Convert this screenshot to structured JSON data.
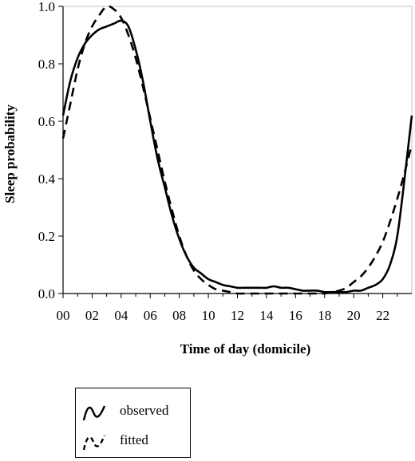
{
  "chart_data": {
    "type": "line",
    "title": "",
    "xlabel": "Time of day (domicile)",
    "ylabel": "Sleep probability",
    "xlim": [
      0,
      24
    ],
    "ylim": [
      0,
      1.0
    ],
    "x_ticks": [
      "00",
      "02",
      "04",
      "06",
      "08",
      "10",
      "12",
      "14",
      "16",
      "18",
      "20",
      "22"
    ],
    "y_ticks": [
      "0.0",
      "0.2",
      "0.4",
      "0.6",
      "0.8",
      "1.0"
    ],
    "grid": false,
    "legend_position": "bottom-left, below plot",
    "series": [
      {
        "name": "observed",
        "style": "solid",
        "x": [
          0,
          0.5,
          1,
          1.5,
          2,
          2.5,
          3,
          3.5,
          4,
          4.5,
          5,
          5.5,
          6,
          6.5,
          7,
          7.5,
          8,
          8.5,
          9,
          9.5,
          10,
          10.5,
          11,
          11.5,
          12,
          12.5,
          13,
          13.5,
          14,
          14.5,
          15,
          15.5,
          16,
          16.5,
          17,
          17.5,
          18,
          18.5,
          19,
          19.5,
          20,
          20.5,
          21,
          21.5,
          22,
          22.5,
          23,
          23.5,
          24
        ],
        "y": [
          0.62,
          0.74,
          0.82,
          0.87,
          0.9,
          0.92,
          0.93,
          0.94,
          0.95,
          0.93,
          0.85,
          0.74,
          0.6,
          0.47,
          0.37,
          0.27,
          0.19,
          0.13,
          0.09,
          0.07,
          0.05,
          0.04,
          0.03,
          0.025,
          0.02,
          0.02,
          0.02,
          0.02,
          0.02,
          0.025,
          0.02,
          0.02,
          0.015,
          0.01,
          0.01,
          0.01,
          0.005,
          0.005,
          0.005,
          0.005,
          0.01,
          0.01,
          0.02,
          0.03,
          0.05,
          0.1,
          0.2,
          0.4,
          0.62
        ]
      },
      {
        "name": "fitted",
        "style": "dashed",
        "x": [
          0,
          0.5,
          1,
          1.5,
          2,
          2.5,
          3,
          3.5,
          4,
          4.5,
          5,
          5.5,
          6,
          6.5,
          7,
          7.5,
          8,
          8.5,
          9,
          9.5,
          10,
          10.5,
          11,
          11.5,
          12,
          12.5,
          13,
          13.5,
          14,
          14.5,
          15,
          15.5,
          16,
          16.5,
          17,
          17.5,
          18,
          18.5,
          19,
          19.5,
          20,
          20.5,
          21,
          21.5,
          22,
          22.5,
          23,
          23.5,
          24
        ],
        "y": [
          0.54,
          0.66,
          0.78,
          0.87,
          0.93,
          0.97,
          1.0,
          0.99,
          0.96,
          0.9,
          0.82,
          0.72,
          0.61,
          0.5,
          0.39,
          0.29,
          0.2,
          0.13,
          0.08,
          0.05,
          0.03,
          0.015,
          0.01,
          0.005,
          0.0,
          0.0,
          0.0,
          0.0,
          0.0,
          0.0,
          0.0,
          0.0,
          0.0,
          0.0,
          0.0,
          0.0,
          0.0,
          0.005,
          0.01,
          0.02,
          0.04,
          0.06,
          0.09,
          0.13,
          0.18,
          0.25,
          0.33,
          0.42,
          0.52
        ]
      }
    ]
  },
  "legend": {
    "items": [
      {
        "label": "observed",
        "style": "solid"
      },
      {
        "label": "fitted",
        "style": "dashed"
      }
    ]
  }
}
